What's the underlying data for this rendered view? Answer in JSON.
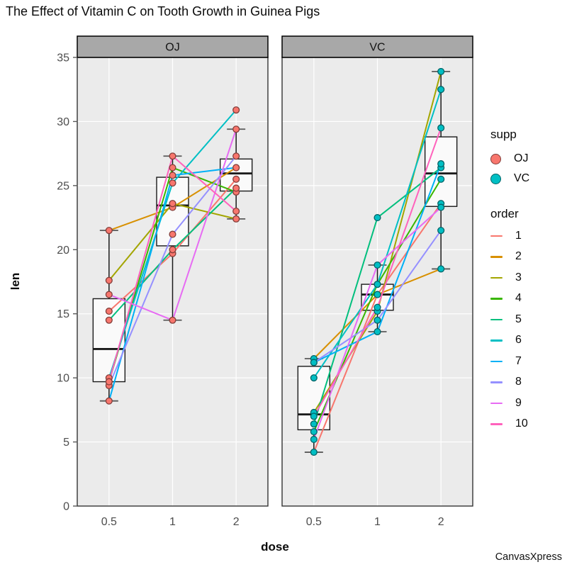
{
  "title": "The Effect of Vitamin C on Tooth Growth in Guinea Pigs",
  "watermark": "CanvasXpress",
  "style": {
    "panel_bg": "#EBEBEB",
    "grid": "#FFFFFF",
    "strip_bg": "#A8A8A8",
    "strip_border": "#000000",
    "panel_border": "#333333",
    "box_fill": "#FAFAFA",
    "box_stroke": "#1A1A1A",
    "whisker_cap": "#595959",
    "tick_color": "#4D4D4D",
    "text_color": "#0A0A0A"
  },
  "chart_data": {
    "type": "boxplot+line+scatter",
    "facet_by": "supp",
    "facets": [
      "OJ",
      "VC"
    ],
    "xlabel": "dose",
    "ylabel": "len",
    "ylim": [
      0,
      35
    ],
    "yticks": [
      0,
      5,
      10,
      15,
      20,
      25,
      30,
      35
    ],
    "xticklabels": [
      "0.5",
      "1",
      "2"
    ],
    "grid": "major-only",
    "legend_position": "right",
    "legend": {
      "supp_title": "supp",
      "supp": [
        {
          "label": "OJ",
          "color": "#F8766D"
        },
        {
          "label": "VC",
          "color": "#00BFC4"
        }
      ],
      "order_title": "order",
      "order": [
        {
          "label": "1",
          "color": "#F8766D"
        },
        {
          "label": "2",
          "color": "#D89000"
        },
        {
          "label": "3",
          "color": "#A3A500"
        },
        {
          "label": "4",
          "color": "#39B600"
        },
        {
          "label": "5",
          "color": "#00BF7D"
        },
        {
          "label": "6",
          "color": "#00BFC4"
        },
        {
          "label": "7",
          "color": "#00B0F6"
        },
        {
          "label": "8",
          "color": "#9590FF"
        },
        {
          "label": "9",
          "color": "#E76BF3"
        },
        {
          "label": "10",
          "color": "#FF62BC"
        }
      ]
    },
    "series": [
      {
        "supp": "OJ",
        "order": 1,
        "values": [
          15.2,
          19.7,
          25.5
        ]
      },
      {
        "supp": "OJ",
        "order": 2,
        "values": [
          21.5,
          23.3,
          26.4
        ]
      },
      {
        "supp": "OJ",
        "order": 3,
        "values": [
          17.6,
          23.6,
          22.4
        ]
      },
      {
        "supp": "OJ",
        "order": 4,
        "values": [
          9.7,
          26.4,
          24.5
        ]
      },
      {
        "supp": "OJ",
        "order": 5,
        "values": [
          14.5,
          20.0,
          24.8
        ]
      },
      {
        "supp": "OJ",
        "order": 6,
        "values": [
          10.0,
          25.2,
          30.9
        ]
      },
      {
        "supp": "OJ",
        "order": 7,
        "values": [
          8.2,
          25.8,
          26.4
        ]
      },
      {
        "supp": "OJ",
        "order": 8,
        "values": [
          9.4,
          21.2,
          27.3
        ]
      },
      {
        "supp": "OJ",
        "order": 9,
        "values": [
          16.5,
          14.5,
          29.4
        ]
      },
      {
        "supp": "OJ",
        "order": 10,
        "values": [
          9.7,
          27.3,
          23.0
        ]
      },
      {
        "supp": "VC",
        "order": 1,
        "values": [
          4.2,
          16.5,
          23.6
        ]
      },
      {
        "supp": "VC",
        "order": 2,
        "values": [
          11.5,
          16.5,
          18.5
        ]
      },
      {
        "supp": "VC",
        "order": 3,
        "values": [
          7.3,
          15.2,
          33.9
        ]
      },
      {
        "supp": "VC",
        "order": 4,
        "values": [
          5.8,
          17.3,
          25.5
        ]
      },
      {
        "supp": "VC",
        "order": 5,
        "values": [
          6.4,
          22.5,
          26.4
        ]
      },
      {
        "supp": "VC",
        "order": 6,
        "values": [
          10.0,
          17.3,
          32.5
        ]
      },
      {
        "supp": "VC",
        "order": 7,
        "values": [
          11.2,
          13.6,
          26.7
        ]
      },
      {
        "supp": "VC",
        "order": 8,
        "values": [
          11.2,
          14.5,
          21.5
        ]
      },
      {
        "supp": "VC",
        "order": 9,
        "values": [
          5.2,
          18.8,
          23.3
        ]
      },
      {
        "supp": "VC",
        "order": 10,
        "values": [
          7.0,
          15.5,
          29.5
        ]
      }
    ]
  }
}
